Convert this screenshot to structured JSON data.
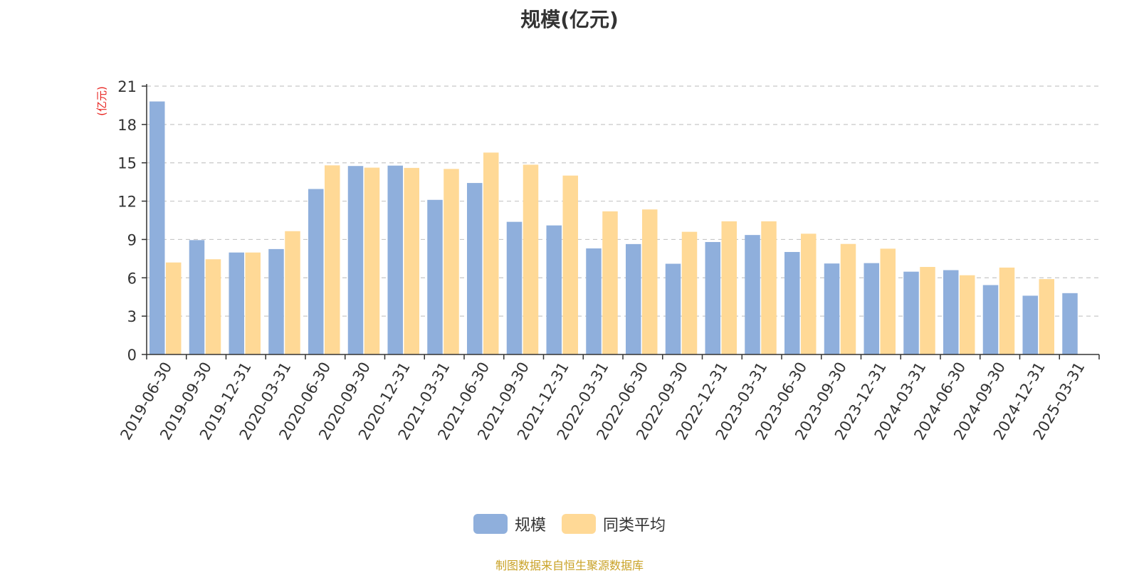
{
  "chart_data": {
    "type": "bar",
    "title": "规模(亿元)",
    "ylabel": "(亿元)",
    "xlabel": "",
    "ylim": [
      0,
      21
    ],
    "yticks": [
      0,
      3,
      6,
      9,
      12,
      15,
      18,
      21
    ],
    "grid": true,
    "legend_position": "bottom",
    "categories": [
      "2019-06-30",
      "2019-09-30",
      "2019-12-31",
      "2020-03-31",
      "2020-06-30",
      "2020-09-30",
      "2020-12-31",
      "2021-03-31",
      "2021-06-30",
      "2021-09-30",
      "2021-12-31",
      "2022-03-31",
      "2022-06-30",
      "2022-09-30",
      "2022-12-31",
      "2023-03-31",
      "2023-06-30",
      "2023-09-30",
      "2023-12-31",
      "2024-03-31",
      "2024-06-30",
      "2024-09-30",
      "2024-12-31",
      "2025-03-31"
    ],
    "series": [
      {
        "name": "规模",
        "color": "#8fafdc",
        "values": [
          19.8,
          8.95,
          7.98,
          8.25,
          12.95,
          14.75,
          14.78,
          12.1,
          13.42,
          10.38,
          10.1,
          8.3,
          8.64,
          7.1,
          8.8,
          9.35,
          8.02,
          7.12,
          7.15,
          6.48,
          6.6,
          5.43,
          4.6,
          4.8
        ]
      },
      {
        "name": "同类平均",
        "color": "#ffd996",
        "values": [
          7.2,
          7.45,
          7.98,
          9.65,
          14.8,
          14.62,
          14.6,
          14.52,
          15.8,
          14.85,
          14.0,
          11.2,
          11.35,
          9.6,
          10.42,
          10.42,
          9.45,
          8.65,
          8.28,
          6.85,
          6.2,
          6.8,
          5.9,
          null
        ]
      }
    ]
  },
  "source_note": "制图数据来自恒生聚源数据库"
}
